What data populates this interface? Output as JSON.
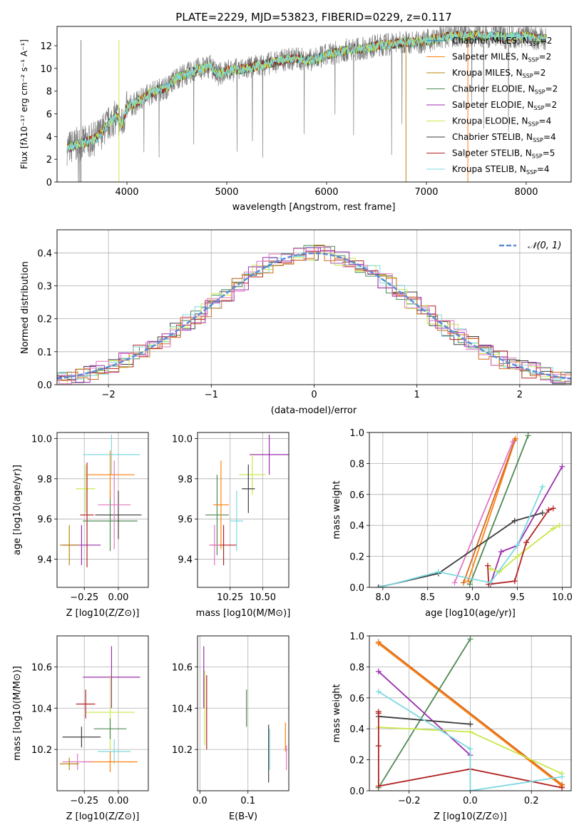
{
  "colors": {
    "Chabrier MILES": "#1f77b4",
    "Salpeter MILES": "#ff7f0e",
    "Kroupa MILES": "#b8860b",
    "Chabrier ELODIE": "#4f8a54",
    "Salpeter ELODIE": "#9b2fae",
    "Kroupa ELODIE": "#c7e84a",
    "Chabrier STELIB": "#3d3d3d",
    "Salpeter STELIB": "#b22222",
    "Kroupa STELIB": "#7dd9e0",
    "extra": [
      "#e377c2",
      "#d2691e",
      "#8c564b",
      "#2ca02c"
    ]
  },
  "chart_data": [
    {
      "type": "line",
      "title": "PLATE=2229, MJD=53823, FIBERID=0229, z=0.117",
      "xlabel": "wavelength [Angstrom, rest frame]",
      "ylabel": "Flux [fλ10⁻¹⁷ erg cm⁻² s⁻¹ A⁻¹]",
      "xlim": [
        3300,
        8450
      ],
      "ylim": [
        0,
        13.7
      ],
      "xticks": [
        "4000",
        "5000",
        "6000",
        "7000",
        "8000"
      ],
      "yticks": [
        "0",
        "2",
        "4",
        "6",
        "8",
        "10",
        "12"
      ],
      "spectrum": {
        "x": [
          3400,
          3500,
          3600,
          3700,
          3800,
          3900,
          3950,
          4000,
          4100,
          4200,
          4300,
          4400,
          4500,
          4600,
          4700,
          4800,
          4850,
          4900,
          5000,
          5100,
          5200,
          5300,
          5400,
          5500,
          5600,
          5700,
          5800,
          5900,
          6000,
          6100,
          6200,
          6300,
          6400,
          6500,
          6600,
          6700,
          6800,
          6900,
          7000,
          7100,
          7200,
          7300,
          7400,
          7500,
          7600,
          7700,
          7800,
          7900,
          8000,
          8100,
          8200
        ],
        "y": [
          3.0,
          3.3,
          3.5,
          3.9,
          5.0,
          5.8,
          5.0,
          6.5,
          7.0,
          7.6,
          8.1,
          8.3,
          9.2,
          9.5,
          9.9,
          10.1,
          10.2,
          9.4,
          9.8,
          9.9,
          10.0,
          10.2,
          10.4,
          10.6,
          10.8,
          10.9,
          10.7,
          10.8,
          11.2,
          11.4,
          11.6,
          11.7,
          11.8,
          12.0,
          12.1,
          12.2,
          12.3,
          12.3,
          12.4,
          12.6,
          12.8,
          12.9,
          12.8,
          12.9,
          12.8,
          12.9,
          12.7,
          12.8,
          12.9,
          12.6,
          12.6
        ]
      },
      "legend": [
        {
          "label": "Chabrier MILES, N",
          "sub": "SSP",
          "tail": "=2"
        },
        {
          "label": "Salpeter MILES, N",
          "sub": "SSP",
          "tail": "=2"
        },
        {
          "label": "Kroupa MILES, N",
          "sub": "SSP",
          "tail": "=2"
        },
        {
          "label": "Chabrier ELODIE, N",
          "sub": "SSP",
          "tail": "=2"
        },
        {
          "label": "Salpeter ELODIE, N",
          "sub": "SSP",
          "tail": "=2"
        },
        {
          "label": "Kroupa ELODIE, N",
          "sub": "SSP",
          "tail": "=4"
        },
        {
          "label": "Chabrier STELIB, N",
          "sub": "SSP",
          "tail": "=4"
        },
        {
          "label": "Salpeter STELIB, N",
          "sub": "SSP",
          "tail": "=5"
        },
        {
          "label": "Kroupa STELIB, N",
          "sub": "SSP",
          "tail": "=4"
        }
      ],
      "legend_placement": "right"
    },
    {
      "type": "line",
      "xlabel": "(data-model)/error",
      "ylabel": "Normed distribution",
      "xlim": [
        -2.5,
        2.5
      ],
      "ylim": [
        0,
        0.47
      ],
      "xticks": [
        "−2",
        "−1",
        "0",
        "1",
        "2"
      ],
      "yticks": [
        "0.0",
        "0.1",
        "0.2",
        "0.3",
        "0.4"
      ],
      "grid": true,
      "legend": "𝒩(0, 1)",
      "legend_placement": "top-right"
    },
    {
      "type": "scatter",
      "xlabel": "Z [log10(Z/Z⊙)]",
      "ylabel": "age  [log10(age/yr)]",
      "xlim": [
        -0.45,
        0.22
      ],
      "ylim": [
        9.26,
        10.03
      ],
      "xticks": [
        "−0.25",
        "0.00"
      ],
      "yticks": [
        "9.4",
        "9.6",
        "9.8",
        "10.0"
      ],
      "points": [
        {
          "x": -0.27,
          "y": 9.47,
          "xerr": 0.14,
          "yerr": 0.1
        },
        {
          "x": -0.24,
          "y": 9.75,
          "xerr": 0.07,
          "yerr": 0.12
        },
        {
          "x": -0.23,
          "y": 9.62,
          "xerr": 0.05,
          "yerr": 0.26
        },
        {
          "x": -0.06,
          "y": 9.59,
          "xerr": 0.2,
          "yerr": 0.15
        },
        {
          "x": 0.0,
          "y": 9.62,
          "xerr": 0.17,
          "yerr": 0.12
        },
        {
          "x": -0.05,
          "y": 9.92,
          "xerr": 0.21,
          "yerr": 0.1
        },
        {
          "x": -0.06,
          "y": 9.82,
          "xerr": 0.18,
          "yerr": 0.12
        },
        {
          "x": -0.03,
          "y": 9.67,
          "xerr": 0.12,
          "yerr": 0.22
        },
        {
          "x": -0.36,
          "y": 9.47,
          "xerr": 0.07,
          "yerr": 0.1
        }
      ]
    },
    {
      "type": "scatter",
      "xlabel": "mass [log10(M/M⊙)]",
      "ylim": [
        9.26,
        10.03
      ],
      "xlim": [
        10.0,
        10.7
      ],
      "xticks": [
        "10.25",
        "10.50"
      ],
      "yticks": [
        "9.4",
        "9.6",
        "9.8",
        "10.0"
      ],
      "points": [
        {
          "x": 10.55,
          "y": 9.92,
          "xerr": 0.15,
          "yerr": 0.1
        },
        {
          "x": 10.42,
          "y": 9.82,
          "xerr": 0.1,
          "yerr": 0.1
        },
        {
          "x": 10.2,
          "y": 9.47,
          "xerr": 0.1,
          "yerr": 0.1
        },
        {
          "x": 10.15,
          "y": 9.62,
          "xerr": 0.09,
          "yerr": 0.2
        },
        {
          "x": 10.39,
          "y": 9.75,
          "xerr": 0.05,
          "yerr": 0.12
        },
        {
          "x": 10.3,
          "y": 9.59,
          "xerr": 0.05,
          "yerr": 0.15
        },
        {
          "x": 10.18,
          "y": 9.67,
          "xerr": 0.06,
          "yerr": 0.22
        },
        {
          "x": 10.13,
          "y": 9.47,
          "xerr": 0.04,
          "yerr": 0.1
        }
      ]
    },
    {
      "type": "line",
      "xlabel": "age  [log10(age/yr)]",
      "ylabel": "mass weight",
      "xlim": [
        7.85,
        10.1
      ],
      "ylim": [
        0,
        1.0
      ],
      "xticks": [
        "8.0",
        "8.5",
        "9.0",
        "9.5",
        "10.0"
      ],
      "yticks": [
        "0.0",
        "0.2",
        "0.4",
        "0.6",
        "0.8",
        "1.0"
      ],
      "grid": true,
      "series": [
        {
          "x": [
            8.95,
            9.48
          ],
          "y": [
            0.04,
            0.96
          ]
        },
        {
          "x": [
            8.9,
            9.47
          ],
          "y": [
            0.03,
            0.95
          ]
        },
        {
          "x": [
            8.8,
            9.45
          ],
          "y": [
            0.03,
            0.94
          ]
        },
        {
          "x": [
            8.97,
            9.62
          ],
          "y": [
            0.02,
            0.98
          ]
        },
        {
          "x": [
            9.2,
            9.32,
            9.5,
            10.0
          ],
          "y": [
            0.02,
            0.23,
            0.27,
            0.78
          ]
        },
        {
          "x": [
            9.2,
            9.3,
            9.5,
            9.9,
            9.97
          ],
          "y": [
            0.12,
            0.1,
            0.2,
            0.38,
            0.4
          ]
        },
        {
          "x": [
            7.95,
            8.62,
            9.47,
            9.78
          ],
          "y": [
            0.0,
            0.09,
            0.43,
            0.48
          ]
        },
        {
          "x": [
            9.17,
            9.18,
            9.47,
            9.6,
            9.85,
            9.9
          ],
          "y": [
            0.14,
            0.02,
            0.04,
            0.29,
            0.5,
            0.51
          ]
        },
        {
          "x": [
            7.97,
            8.62,
            9.2,
            9.5,
            9.78
          ],
          "y": [
            0.0,
            0.1,
            0.03,
            0.27,
            0.65
          ]
        }
      ]
    },
    {
      "type": "scatter",
      "xlabel": "Z [log10(Z/Z⊙)]",
      "ylabel": "mass [log10(M/M⊙)]",
      "xlim": [
        -0.45,
        0.22
      ],
      "ylim": [
        10.0,
        10.75
      ],
      "xticks": [
        "−0.25",
        "0.00"
      ],
      "yticks": [
        "10.2",
        "10.4",
        "10.6"
      ],
      "points": [
        {
          "x": -0.05,
          "y": 10.55,
          "xerr": 0.21,
          "yerr": 0.15
        },
        {
          "x": -0.06,
          "y": 10.38,
          "xerr": 0.18,
          "yerr": 0.18
        },
        {
          "x": -0.24,
          "y": 10.42,
          "xerr": 0.07,
          "yerr": 0.07
        },
        {
          "x": -0.06,
          "y": 10.3,
          "xerr": 0.12,
          "yerr": 0.05
        },
        {
          "x": -0.27,
          "y": 10.26,
          "xerr": 0.14,
          "yerr": 0.05
        },
        {
          "x": -0.03,
          "y": 10.19,
          "xerr": 0.12,
          "yerr": 0.06
        },
        {
          "x": -0.06,
          "y": 10.14,
          "xerr": 0.2,
          "yerr": 0.05
        },
        {
          "x": -0.3,
          "y": 10.14,
          "xerr": 0.11,
          "yerr": 0.04
        },
        {
          "x": -0.36,
          "y": 10.13,
          "xerr": 0.07,
          "yerr": 0.03
        }
      ]
    },
    {
      "type": "scatter",
      "xlabel": "E(B-V)",
      "xlim": [
        -0.005,
        0.185
      ],
      "ylim": [
        10.0,
        10.75
      ],
      "xticks": [
        "0.0",
        "0.1"
      ],
      "yticks": [
        "10.2",
        "10.4",
        "10.6"
      ],
      "points": [
        {
          "x": 0.008,
          "y": 10.55,
          "yerr": 0.15
        },
        {
          "x": 0.01,
          "y": 10.4,
          "yerr": 0.18
        },
        {
          "x": 0.014,
          "y": 10.38,
          "yerr": 0.18
        },
        {
          "x": 0.097,
          "y": 10.4,
          "yerr": 0.09
        },
        {
          "x": 0.143,
          "y": 10.18,
          "yerr": 0.14
        },
        {
          "x": 0.145,
          "y": 10.2,
          "yerr": 0.1
        },
        {
          "x": 0.178,
          "y": 10.26,
          "yerr": 0.07
        },
        {
          "x": 0.18,
          "y": 10.16,
          "yerr": 0.06
        }
      ]
    },
    {
      "type": "line",
      "xlabel": "Z [log10(Z/Z⊙)]",
      "ylabel": "mass weight",
      "xlim": [
        -0.33,
        0.33
      ],
      "ylim": [
        0,
        1.0
      ],
      "xticks": [
        "−0.2",
        "0.0",
        "0.2"
      ],
      "yticks": [
        "0.0",
        "0.2",
        "0.4",
        "0.6",
        "0.8",
        "1.0"
      ],
      "grid": true,
      "series": [
        {
          "x": [
            -0.3,
            0.3
          ],
          "y": [
            0.96,
            0.04
          ]
        },
        {
          "x": [
            -0.3,
            0.3
          ],
          "y": [
            0.95,
            0.03
          ]
        },
        {
          "x": [
            -0.3,
            0.0
          ],
          "y": [
            0.02,
            0.98
          ]
        },
        {
          "x": [
            -0.3,
            0.0
          ],
          "y": [
            0.77,
            0.23
          ]
        },
        {
          "x": [
            -0.3,
            0.0,
            0.3
          ],
          "y": [
            0.41,
            0.38,
            0.11
          ]
        },
        {
          "x": [
            -0.3,
            0.0
          ],
          "y": [
            0.48,
            0.43
          ]
        },
        {
          "x": [
            -0.3,
            -0.3,
            -0.3,
            -0.3,
            0.0,
            0.3
          ],
          "y": [
            0.51,
            0.5,
            0.29,
            0.03,
            0.14,
            0.02
          ]
        },
        {
          "x": [
            -0.3,
            0.0,
            0.0,
            0.3
          ],
          "y": [
            0.64,
            0.27,
            0.0,
            0.09
          ]
        }
      ]
    }
  ]
}
